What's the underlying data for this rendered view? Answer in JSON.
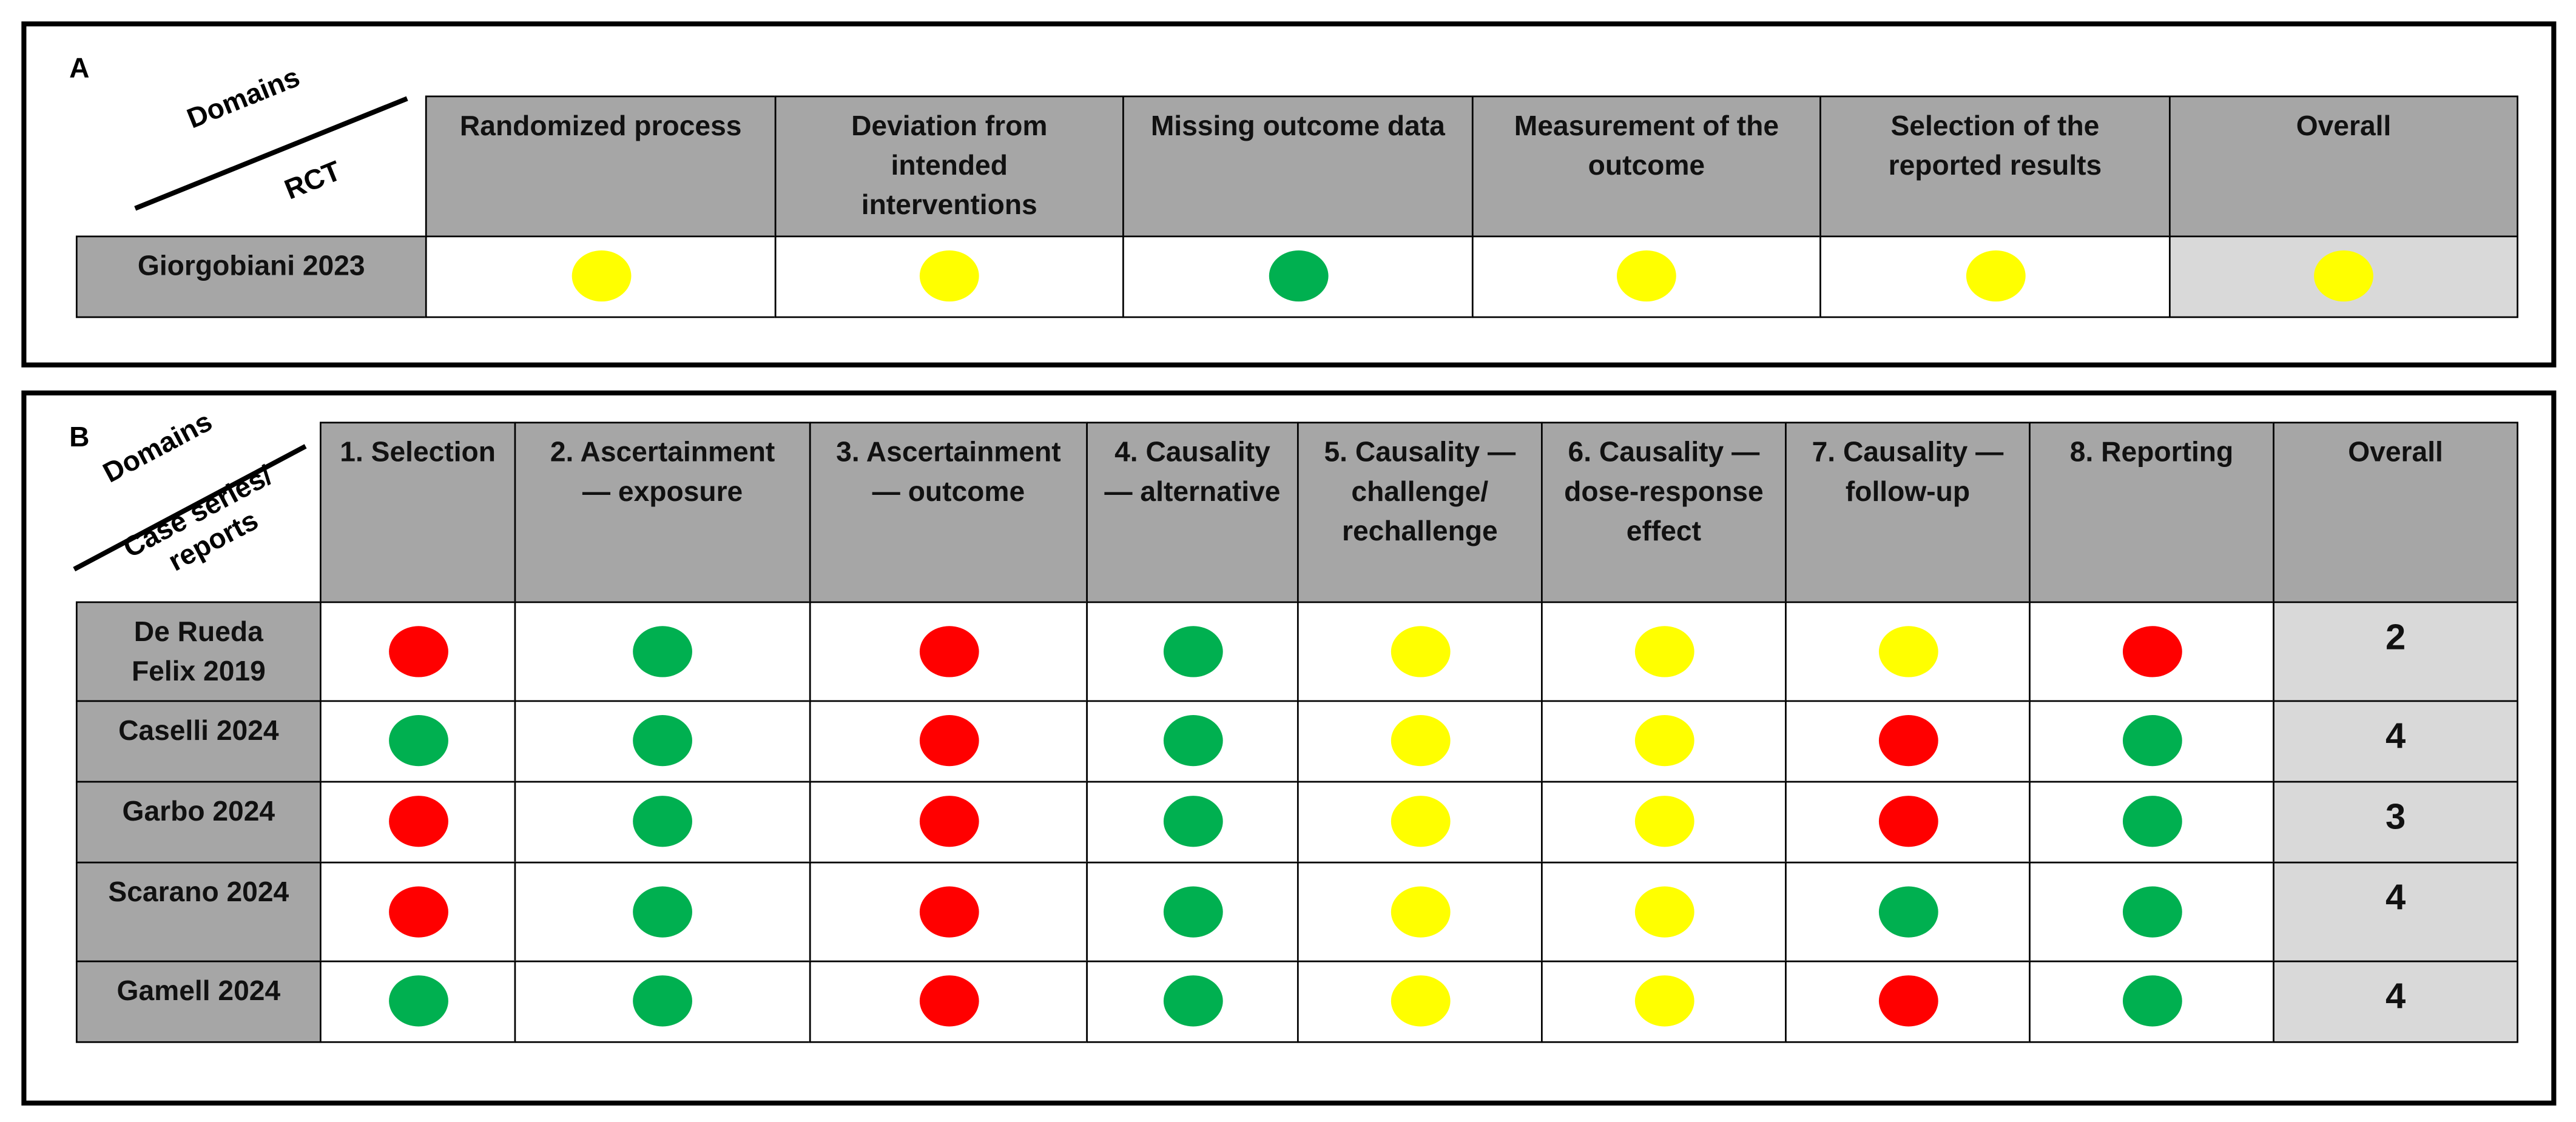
{
  "panel_a": {
    "label": "A",
    "corner": {
      "top": "Domains",
      "bottom": "RCT"
    },
    "columns": [
      "Randomized process",
      "Deviation from intended interventions",
      "Missing outcome data",
      "Measurement of the outcome",
      "Selection of the reported results",
      "Overall"
    ],
    "rows": [
      {
        "study": "Giorgobiani 2023",
        "ratings": [
          "#ffff00",
          "#ffff00",
          "#00b050",
          "#ffff00",
          "#ffff00",
          "#ffff00"
        ]
      }
    ]
  },
  "panel_b": {
    "label": "B",
    "corner": {
      "top": "Domains",
      "bottom": "Case series/ reports"
    },
    "columns": [
      "1. Selection",
      "2. Ascertainment — exposure",
      "3. Ascertainment — outcome",
      "4. Causality — alternative",
      "5. Causality — challenge/ rechallenge",
      "6. Causality — dose-response effect",
      "7. Causality — follow-up",
      "8. Reporting",
      "Overall"
    ],
    "rows": [
      {
        "study": "De Rueda Felix 2019",
        "ratings": [
          "#ff0000",
          "#00b050",
          "#ff0000",
          "#00b050",
          "#ffff00",
          "#ffff00",
          "#ffff00",
          "#ff0000"
        ],
        "overall": 2
      },
      {
        "study": "Caselli 2024",
        "ratings": [
          "#00b050",
          "#00b050",
          "#ff0000",
          "#00b050",
          "#ffff00",
          "#ffff00",
          "#ff0000",
          "#00b050"
        ],
        "overall": 4
      },
      {
        "study": "Garbo 2024",
        "ratings": [
          "#ff0000",
          "#00b050",
          "#ff0000",
          "#00b050",
          "#ffff00",
          "#ffff00",
          "#ff0000",
          "#00b050"
        ],
        "overall": 3
      },
      {
        "study": "Scarano 2024",
        "ratings": [
          "#ff0000",
          "#00b050",
          "#ff0000",
          "#00b050",
          "#ffff00",
          "#ffff00",
          "#00b050",
          "#00b050"
        ],
        "overall": 4
      },
      {
        "study": "Gamell 2024",
        "ratings": [
          "#00b050",
          "#00b050",
          "#ff0000",
          "#00b050",
          "#ffff00",
          "#ffff00",
          "#ff0000",
          "#00b050"
        ],
        "overall": 4
      }
    ]
  }
}
